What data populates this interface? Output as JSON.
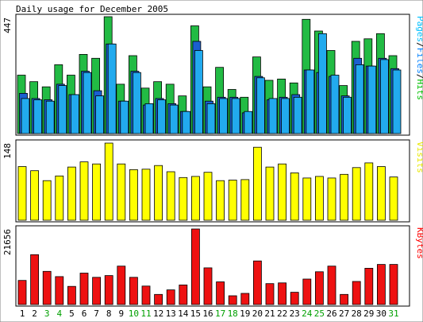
{
  "chart_data": {
    "type": "bar",
    "title": "Daily usage for December 2005",
    "days": [
      "1",
      "2",
      "3",
      "4",
      "5",
      "6",
      "7",
      "8",
      "9",
      "10",
      "11",
      "12",
      "13",
      "14",
      "15",
      "16",
      "17",
      "18",
      "19",
      "20",
      "21",
      "22",
      "23",
      "24",
      "25",
      "26",
      "27",
      "28",
      "29",
      "30",
      "31"
    ],
    "weekend_days": [
      "3",
      "4",
      "10",
      "11",
      "17",
      "18",
      "24",
      "25",
      "31"
    ],
    "panels": [
      {
        "id": "hits",
        "max_label": "447",
        "ymax": 447,
        "side_label_parts": [
          {
            "text": "Pages",
            "color": "#00c0ff"
          },
          {
            "text": "/",
            "color": "#000000"
          },
          {
            "text": "Files",
            "color": "#0080ff"
          },
          {
            "text": "/",
            "color": "#000000"
          },
          {
            "text": "Hits",
            "color": "#00c000"
          }
        ],
        "series": [
          {
            "name": "Hits",
            "color": "#22bb44",
            "values": [
              225,
              200,
              180,
              265,
              225,
              305,
              290,
              450,
              190,
              300,
              175,
              200,
              190,
              145,
              415,
              180,
              255,
              170,
              140,
              295,
              205,
              210,
              195,
              440,
              395,
              320,
              185,
              355,
              365,
              385,
              300
            ]
          },
          {
            "name": "Files",
            "color": "#1a5fd0",
            "values": [
              155,
              135,
              130,
              190,
              150,
              240,
              165,
              345,
              125,
              240,
              110,
              135,
              115,
              85,
              355,
              125,
              140,
              140,
              80,
              220,
              130,
              140,
              150,
              245,
              235,
              220,
              145,
              290,
              260,
              290,
              250
            ]
          },
          {
            "name": "Pages",
            "color": "#22aaee",
            "values": [
              135,
              130,
              125,
              185,
              150,
              235,
              145,
              345,
              125,
              235,
              115,
              130,
              110,
              85,
              320,
              115,
              135,
              135,
              85,
              215,
              135,
              135,
              140,
              245,
              385,
              225,
              140,
              265,
              260,
              285,
              245
            ]
          }
        ]
      },
      {
        "id": "visits",
        "max_label": "148",
        "ymax": 148,
        "side_label_parts": [
          {
            "text": "Visits",
            "color": "#e8e800"
          }
        ],
        "series": [
          {
            "name": "Visits",
            "color": "#ffff00",
            "values": [
              103,
              95,
              76,
              85,
              102,
              112,
              108,
              148,
              108,
              97,
              98,
              105,
              93,
              82,
              84,
              92,
              76,
              77,
              78,
              140,
              102,
              108,
              91,
              81,
              84,
              81,
              88,
              101,
              110,
              103,
              83
            ]
          }
        ]
      },
      {
        "id": "kbytes",
        "max_label": "21656",
        "ymax": 21656,
        "side_label_parts": [
          {
            "text": "KBytes",
            "color": "#ff0000"
          }
        ],
        "series": [
          {
            "name": "KBytes",
            "color": "#ee1111",
            "values": [
              6900,
              14300,
              9500,
              8000,
              5200,
              9000,
              7800,
              8300,
              11000,
              7800,
              5300,
              2900,
              4200,
              5600,
              21656,
              10500,
              6500,
              2500,
              3200,
              12500,
              6000,
              6200,
              3500,
              7300,
              9400,
              11000,
              2900,
              6600,
              10400,
              11500,
              11500
            ]
          }
        ]
      }
    ]
  }
}
